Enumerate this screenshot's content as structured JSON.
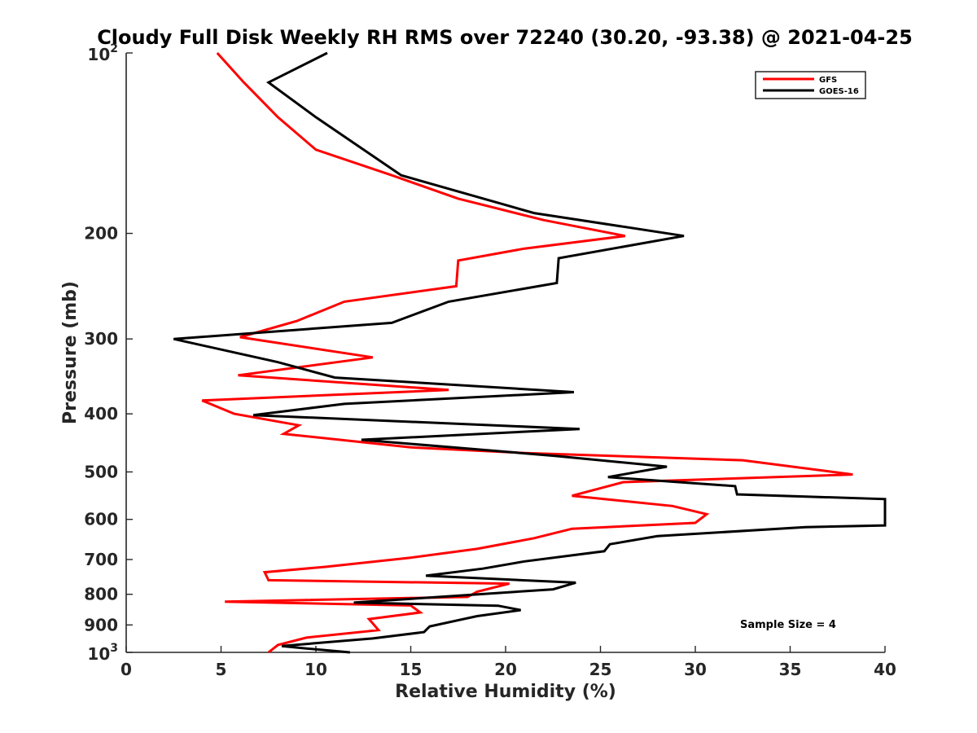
{
  "chart_data": {
    "type": "line",
    "title": "Cloudy Full Disk Weekly RH RMS over 72240 (30.20, -93.38) @ 2021-04-25",
    "xlabel": "Relative Humidity (%)",
    "ylabel": "Pressure (mb)",
    "xlim": [
      0,
      40
    ],
    "ylim": [
      100,
      1000
    ],
    "yscale": "log",
    "yreversed": true,
    "x_ticks": [
      {
        "value": 0,
        "label": "0"
      },
      {
        "value": 5,
        "label": "5"
      },
      {
        "value": 10,
        "label": "10"
      },
      {
        "value": 15,
        "label": "15"
      },
      {
        "value": 20,
        "label": "20"
      },
      {
        "value": 25,
        "label": "25"
      },
      {
        "value": 30,
        "label": "30"
      },
      {
        "value": 35,
        "label": "35"
      },
      {
        "value": 40,
        "label": "40"
      }
    ],
    "y_ticks": [
      {
        "value": 100,
        "base": "10",
        "exp": "2"
      },
      {
        "value": 200,
        "label": "200"
      },
      {
        "value": 300,
        "label": "300"
      },
      {
        "value": 400,
        "label": "400"
      },
      {
        "value": 500,
        "label": "500"
      },
      {
        "value": 600,
        "label": "600"
      },
      {
        "value": 700,
        "label": "700"
      },
      {
        "value": 800,
        "label": "800"
      },
      {
        "value": 900,
        "label": "900"
      },
      {
        "value": 1000,
        "base": "10",
        "exp": "3"
      }
    ],
    "grid": false,
    "legend_position": "top-right",
    "annotation": "Sample Size = 4",
    "series": [
      {
        "name": "GFS",
        "color": "#ff0000",
        "points": [
          [
            4.8,
            100
          ],
          [
            6.2,
            112
          ],
          [
            8.0,
            128
          ],
          [
            10.0,
            145
          ],
          [
            14.0,
            160
          ],
          [
            17.5,
            175
          ],
          [
            22.0,
            190
          ],
          [
            26.3,
            202
          ],
          [
            21.0,
            212
          ],
          [
            17.5,
            222
          ],
          [
            17.4,
            245
          ],
          [
            11.5,
            260
          ],
          [
            9.0,
            280
          ],
          [
            6.0,
            298
          ],
          [
            13.0,
            322
          ],
          [
            5.9,
            345
          ],
          [
            17.0,
            365
          ],
          [
            4.0,
            380
          ],
          [
            5.7,
            400
          ],
          [
            9.1,
            418
          ],
          [
            8.3,
            432
          ],
          [
            15.0,
            455
          ],
          [
            21.0,
            465
          ],
          [
            32.5,
            478
          ],
          [
            38.3,
            505
          ],
          [
            26.2,
            520
          ],
          [
            23.5,
            548
          ],
          [
            28.8,
            570
          ],
          [
            30.6,
            588
          ],
          [
            30.0,
            608
          ],
          [
            23.5,
            622
          ],
          [
            21.5,
            645
          ],
          [
            18.5,
            672
          ],
          [
            15.0,
            695
          ],
          [
            10.5,
            720
          ],
          [
            7.3,
            735
          ],
          [
            7.5,
            758
          ],
          [
            20.2,
            768
          ],
          [
            18.5,
            792
          ],
          [
            18.0,
            808
          ],
          [
            5.2,
            823
          ],
          [
            15.0,
            835
          ],
          [
            15.5,
            858
          ],
          [
            12.8,
            880
          ],
          [
            13.0,
            895
          ],
          [
            13.3,
            918
          ],
          [
            9.5,
            945
          ],
          [
            8.0,
            972
          ],
          [
            7.5,
            1000
          ]
        ]
      },
      {
        "name": "GOES-16",
        "color": "#000000",
        "points": [
          [
            10.6,
            100
          ],
          [
            7.5,
            112
          ],
          [
            10.0,
            128
          ],
          [
            14.5,
            160
          ],
          [
            21.5,
            185
          ],
          [
            29.4,
            202
          ],
          [
            22.8,
            220
          ],
          [
            22.7,
            242
          ],
          [
            17.0,
            260
          ],
          [
            14.0,
            282
          ],
          [
            2.5,
            300
          ],
          [
            8.0,
            328
          ],
          [
            11.0,
            348
          ],
          [
            23.6,
            368
          ],
          [
            11.5,
            385
          ],
          [
            6.7,
            402
          ],
          [
            23.9,
            424
          ],
          [
            12.4,
            442
          ],
          [
            22.6,
            470
          ],
          [
            28.5,
            490
          ],
          [
            25.4,
            510
          ],
          [
            32.1,
            528
          ],
          [
            32.2,
            545
          ],
          [
            40.0,
            555
          ],
          [
            40.0,
            614
          ],
          [
            35.8,
            618
          ],
          [
            28.0,
            640
          ],
          [
            25.5,
            660
          ],
          [
            25.2,
            678
          ],
          [
            21.0,
            705
          ],
          [
            18.8,
            725
          ],
          [
            15.8,
            745
          ],
          [
            23.7,
            765
          ],
          [
            22.5,
            785
          ],
          [
            12.0,
            826
          ],
          [
            19.6,
            836
          ],
          [
            20.8,
            850
          ],
          [
            18.5,
            870
          ],
          [
            16.0,
            905
          ],
          [
            15.7,
            925
          ],
          [
            13.0,
            948
          ],
          [
            8.2,
            976
          ],
          [
            9.5,
            985
          ],
          [
            11.8,
            1000
          ]
        ]
      }
    ]
  }
}
